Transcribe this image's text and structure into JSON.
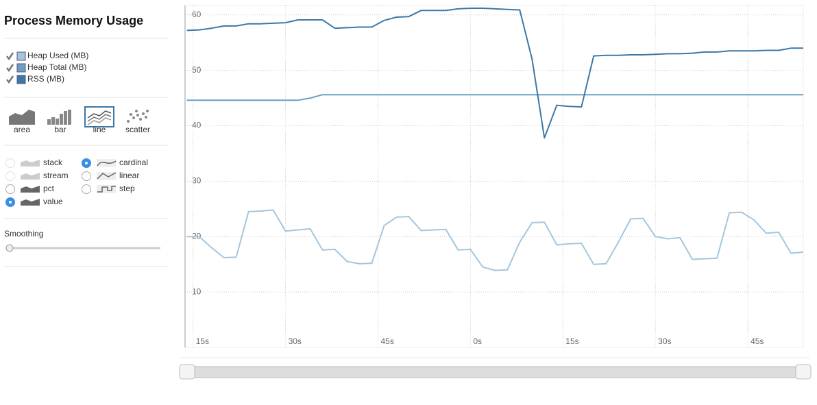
{
  "sidebar": {
    "title": "Process Memory Usage",
    "renderers": [
      "area",
      "bar",
      "line",
      "scatter"
    ],
    "offsets": [
      {
        "label": "stack",
        "enabled": false,
        "checked": false
      },
      {
        "label": "stream",
        "enabled": false,
        "checked": false
      },
      {
        "label": "pct",
        "enabled": true,
        "checked": false
      },
      {
        "label": "value",
        "enabled": true,
        "checked": true
      }
    ],
    "interpolations": [
      {
        "label": "cardinal",
        "checked": true
      },
      {
        "label": "linear",
        "checked": false
      },
      {
        "label": "step",
        "checked": false
      }
    ],
    "smoothing_label": "Smoothing"
  },
  "chart_data": {
    "type": "line",
    "x": [
      14,
      16,
      18,
      20,
      22,
      24,
      26,
      28,
      30,
      32,
      34,
      36,
      38,
      40,
      42,
      44,
      46,
      48,
      50,
      52,
      54,
      56,
      58,
      60,
      62,
      64,
      66,
      68,
      70,
      72,
      74,
      76,
      78,
      80,
      82,
      84,
      86,
      88,
      90,
      92,
      94,
      96,
      98,
      100,
      102,
      104,
      106,
      108,
      110,
      112,
      114
    ],
    "series": [
      {
        "name": "Heap Used (MB)",
        "color": "#a3c6de",
        "values": [
          20,
          20,
          18,
          16.2,
          16.3,
          24.5,
          24.6,
          24.8,
          21,
          21.2,
          21.4,
          17.6,
          17.7,
          15.5,
          15.1,
          15.2,
          22,
          23.5,
          23.6,
          21.1,
          21.2,
          21.3,
          17.6,
          17.7,
          14.5,
          13.9,
          14,
          19,
          22.5,
          22.6,
          18.5,
          18.7,
          18.8,
          15,
          15.1,
          19,
          23.2,
          23.3,
          20,
          19.6,
          19.8,
          15.9,
          16,
          16.1,
          24.3,
          24.4,
          23,
          20.6,
          20.8,
          17,
          17.2
        ]
      },
      {
        "name": "Heap Total (MB)",
        "color": "#6a9fc2",
        "values": [
          44.6,
          44.6,
          44.6,
          44.6,
          44.6,
          44.6,
          44.6,
          44.6,
          44.6,
          44.6,
          45,
          45.6,
          45.6,
          45.6,
          45.6,
          45.6,
          45.6,
          45.6,
          45.6,
          45.6,
          45.6,
          45.6,
          45.6,
          45.6,
          45.6,
          45.6,
          45.6,
          45.6,
          45.6,
          45.6,
          45.6,
          45.6,
          45.6,
          45.6,
          45.6,
          45.6,
          45.6,
          45.6,
          45.6,
          45.6,
          45.6,
          45.6,
          45.6,
          45.6,
          45.6,
          45.6,
          45.6,
          45.6,
          45.6,
          45.6,
          45.6
        ]
      },
      {
        "name": "RSS (MB)",
        "color": "#3a78a8",
        "values": [
          57.2,
          57.3,
          57.6,
          58,
          58,
          58.4,
          58.4,
          58.5,
          58.6,
          59.1,
          59.1,
          59.1,
          57.6,
          57.7,
          57.8,
          57.8,
          59,
          59.6,
          59.7,
          60.8,
          60.8,
          60.8,
          61.1,
          61.2,
          61.2,
          61.1,
          61,
          60.9,
          52,
          37.8,
          43.7,
          43.5,
          43.4,
          52.6,
          52.7,
          52.7,
          52.8,
          52.8,
          52.9,
          53,
          53,
          53.1,
          53.3,
          53.3,
          53.5,
          53.5,
          53.5,
          53.6,
          53.6,
          54,
          54
        ]
      }
    ],
    "xlim": [
      13.7,
      114
    ],
    "ylim": [
      0,
      61.7
    ],
    "xticks": [
      {
        "value": 15,
        "label": "15s"
      },
      {
        "value": 30,
        "label": "30s"
      },
      {
        "value": 45,
        "label": "45s"
      },
      {
        "value": 60,
        "label": "0s"
      },
      {
        "value": 75,
        "label": "15s"
      },
      {
        "value": 90,
        "label": "30s"
      },
      {
        "value": 105,
        "label": "45s"
      }
    ],
    "yticks": [
      10,
      20,
      30,
      40,
      50,
      60
    ],
    "grid": true
  }
}
